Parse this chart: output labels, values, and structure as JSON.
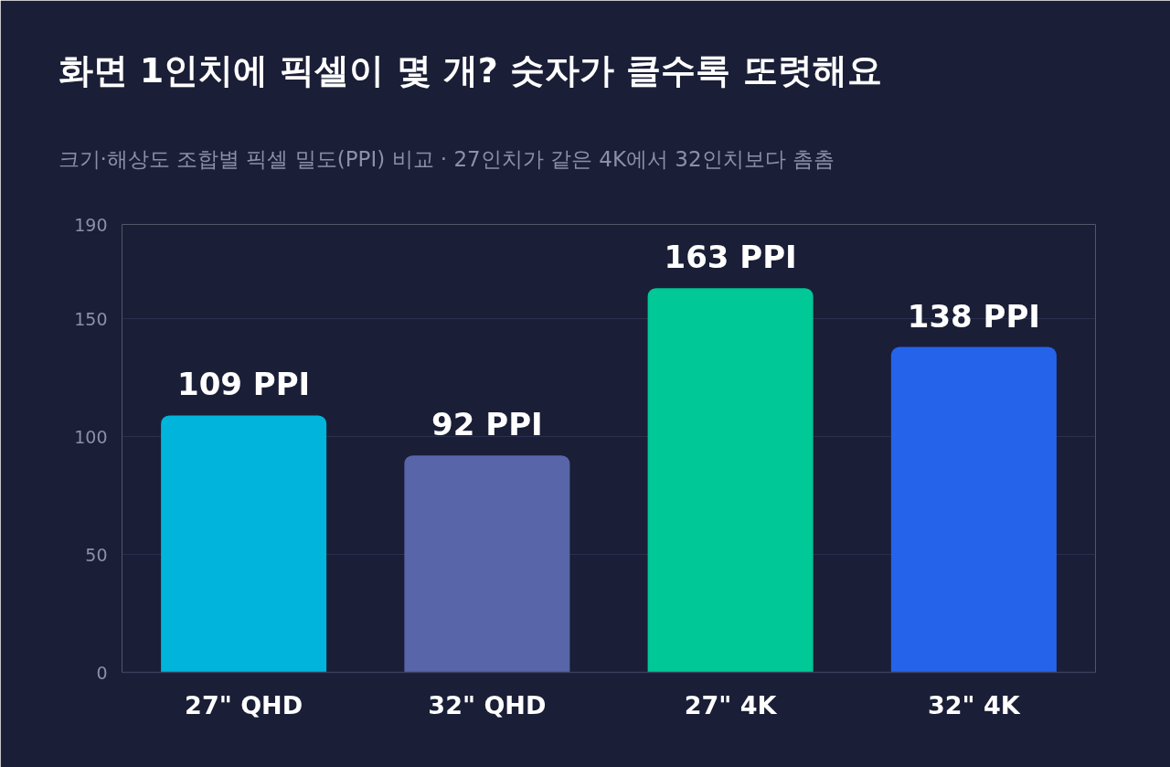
{
  "chart_data": {
    "type": "bar",
    "title": "화면 1인치에 픽셀이 몇 개? 숫자가 클수록 또렷해요",
    "subtitle": "크기·해상도 조합별 픽셀 밀도(PPI) 비교 · 27인치가 같은 4K에서 32인치보다 촘촘",
    "categories": [
      "27\" QHD",
      "32\" QHD",
      "27\" 4K",
      "32\" 4K"
    ],
    "values": [
      109,
      92,
      163,
      138
    ],
    "colors": [
      "#00b4db",
      "#5865a8",
      "#00c896",
      "#2563eb"
    ],
    "value_labels": [
      "109 PPI",
      "92 PPI",
      "163 PPI",
      "138 PPI"
    ],
    "ylim": [
      0,
      190
    ],
    "yticks": [
      0,
      50,
      100,
      150,
      190
    ],
    "grid": "y"
  }
}
